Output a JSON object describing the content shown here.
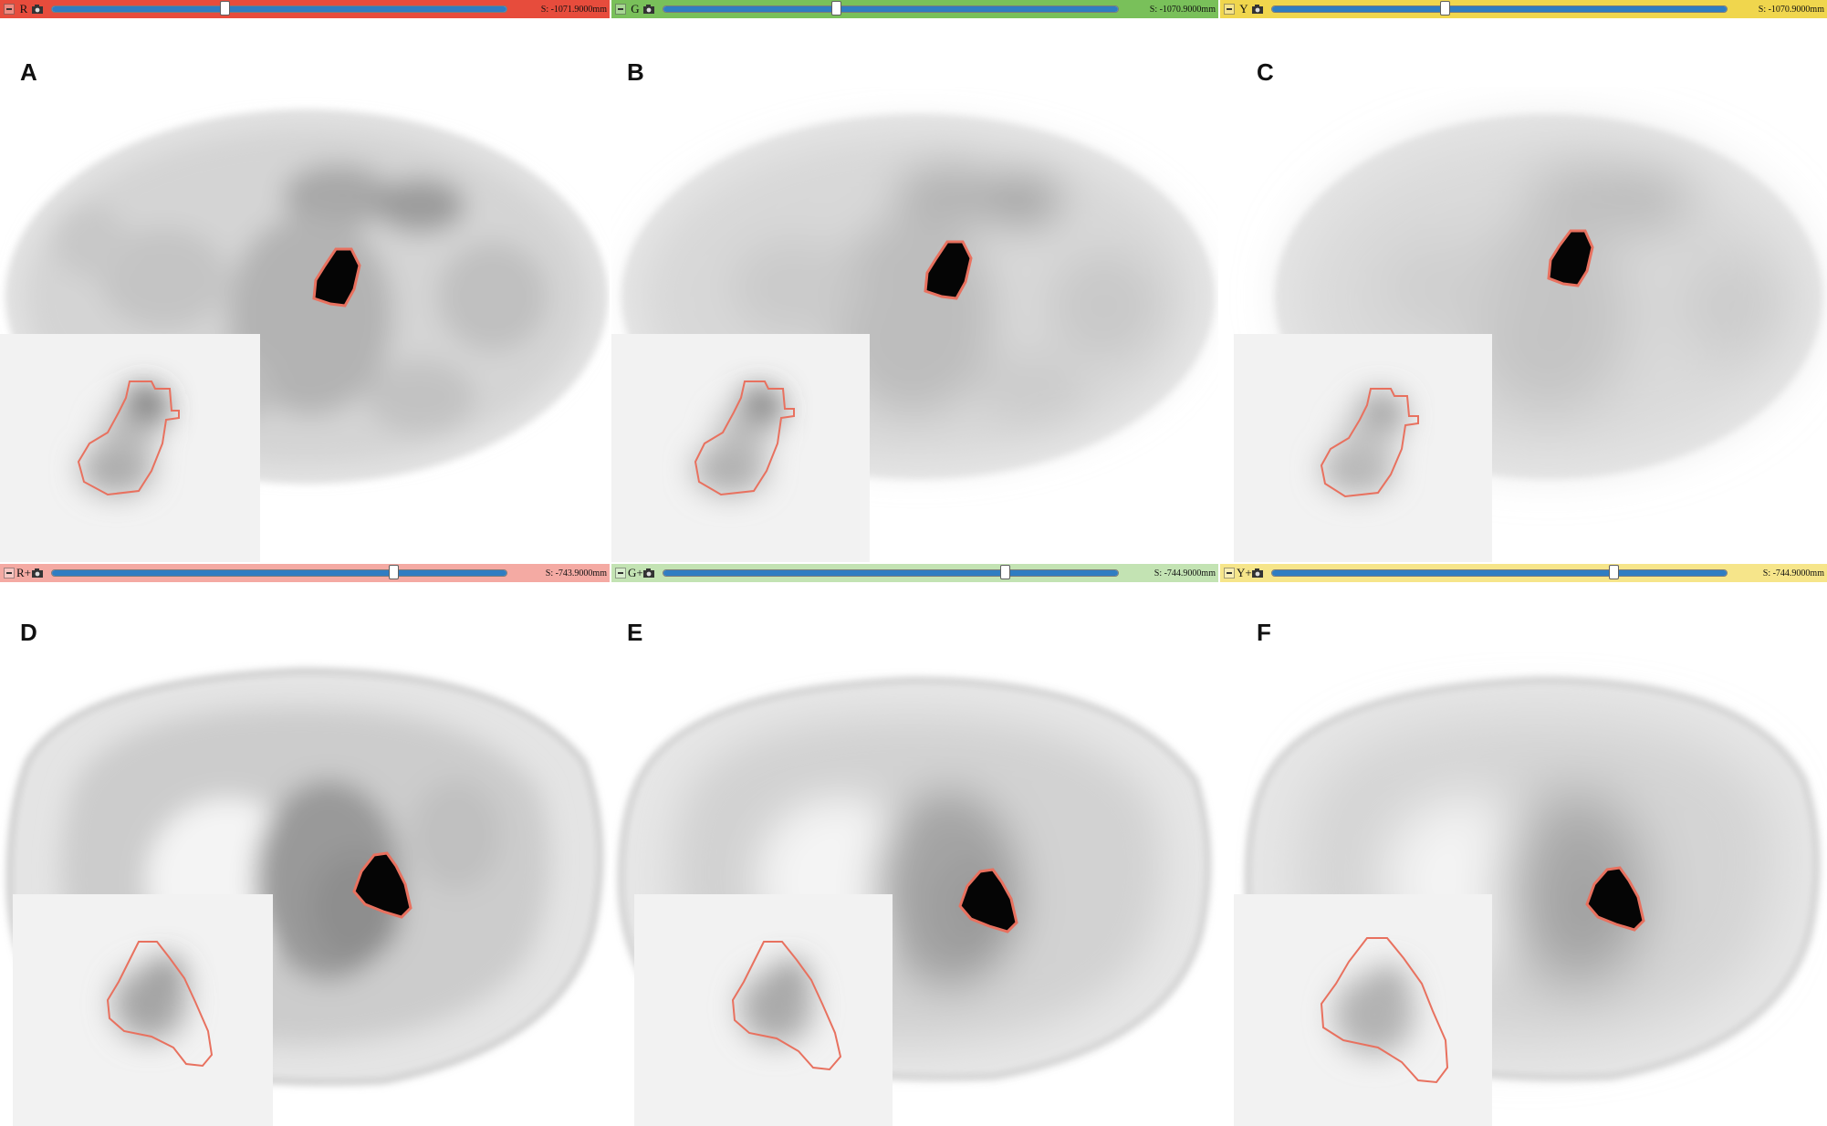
{
  "colors": {
    "red_bar": "#e74c3c",
    "green_bar": "#79c05a",
    "yellow_bar": "#f0d64d",
    "red_bar_light": "#f4aaa3",
    "green_bar_light": "#c3e3b3",
    "yellow_bar_light": "#f6e58a",
    "slider_fill": "#2f7dc2",
    "contour": "#e8715f"
  },
  "top_row": {
    "bars": [
      {
        "view": "R",
        "offset": "S: -1071.9000mm",
        "slider_fraction": 0.38
      },
      {
        "view": "G",
        "offset": "S: -1070.9000mm",
        "slider_fraction": 0.38
      },
      {
        "view": "Y",
        "offset": "S: -1070.9000mm",
        "slider_fraction": 0.38
      }
    ],
    "panels": [
      "A",
      "B",
      "C"
    ]
  },
  "bottom_row": {
    "bars": [
      {
        "view": "R+",
        "offset": "S: -743.9000mm",
        "slider_fraction": 0.75
      },
      {
        "view": "G+",
        "offset": "S: -744.9000mm",
        "slider_fraction": 0.75
      },
      {
        "view": "Y+",
        "offset": "S: -744.9000mm",
        "slider_fraction": 0.75
      }
    ],
    "panels": [
      "D",
      "E",
      "F"
    ]
  },
  "icons": {
    "pin": "pin-icon",
    "camera": "camera-icon"
  }
}
